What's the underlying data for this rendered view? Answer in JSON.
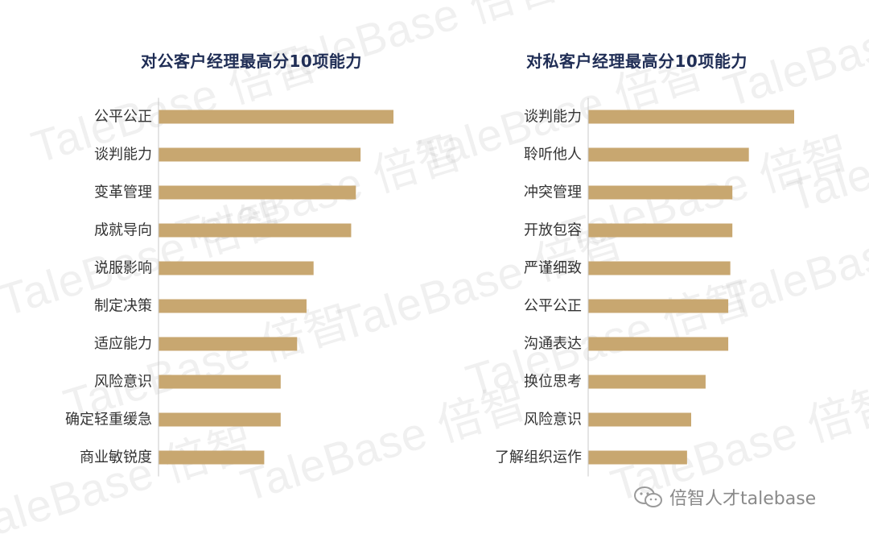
{
  "colors": {
    "bar": "#c8a770",
    "title": "#1f2d55",
    "label": "#333333"
  },
  "watermark": {
    "text": "TaleBase 倍智"
  },
  "brand": {
    "text": "倍智人才talebase",
    "icon": "wechat-icon"
  },
  "chart_data": [
    {
      "type": "bar",
      "orientation": "horizontal",
      "title": "对公客户经理最高分10项能力",
      "categories": [
        "公平公正",
        "谈判能力",
        "变革管理",
        "成就导向",
        "说服影响",
        "制定决策",
        "适应能力",
        "风险意识",
        "确定轻重缓急",
        "商业敏锐度"
      ],
      "values": [
        100,
        86,
        84,
        82,
        66,
        63,
        59,
        52,
        52,
        45
      ],
      "xlim": [
        0,
        100
      ],
      "grid": false,
      "legend": "none"
    },
    {
      "type": "bar",
      "orientation": "horizontal",
      "title": "对私客户经理最高分10项能力",
      "categories": [
        "谈判能力",
        "聆听他人",
        "冲突管理",
        "开放包容",
        "严谨细致",
        "公平公正",
        "沟通表达",
        "换位思考",
        "风险意识",
        "了解组织运作"
      ],
      "values": [
        100,
        78,
        70,
        70,
        69,
        68,
        68,
        57,
        50,
        48
      ],
      "xlim": [
        0,
        100
      ],
      "grid": false,
      "legend": "none"
    }
  ]
}
